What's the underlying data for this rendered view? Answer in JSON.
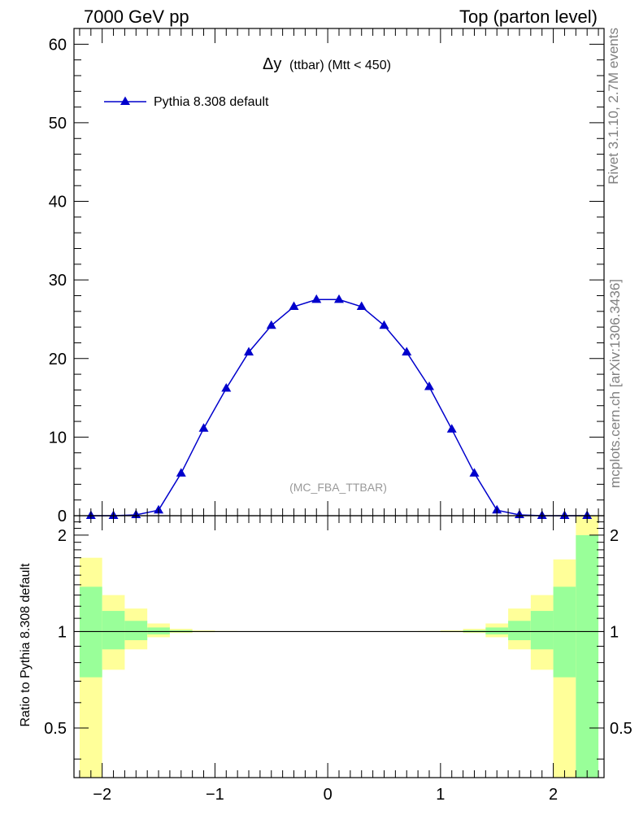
{
  "header": {
    "left": "7000 GeV pp",
    "right": "Top (parton level)"
  },
  "side_labels": {
    "rivet": "Rivet 3.1.10,  2.7M events",
    "mcplots": "mcplots.cern.ch [arXiv:1306.3436]"
  },
  "main_plot": {
    "title_symbol": "Δy",
    "title_rest": "(ttbar) (Mtt < 450)",
    "watermark": "(MC_FBA_TTBAR)",
    "legend_label": "Pythia 8.308 default"
  },
  "ratio_plot": {
    "ylabel": "Ratio to Pythia 8.308 default"
  },
  "colors": {
    "series": "#0000cc",
    "band_inner": "#99ff99",
    "band_outer": "#ffff99"
  },
  "chart_data": [
    {
      "type": "line",
      "x": [
        -2.1,
        -1.9,
        -1.7,
        -1.5,
        -1.3,
        -1.1,
        -0.9,
        -0.7,
        -0.5,
        -0.3,
        -0.1,
        0.1,
        0.3,
        0.5,
        0.7,
        0.9,
        1.1,
        1.3,
        1.5,
        1.7,
        1.9,
        2.1,
        2.3
      ],
      "series": [
        {
          "name": "Pythia 8.308 default",
          "values": [
            0.0,
            0.0,
            0.1,
            0.7,
            5.4,
            11.1,
            16.2,
            20.8,
            24.2,
            26.6,
            27.5,
            27.5,
            26.6,
            24.2,
            20.8,
            16.4,
            11.0,
            5.4,
            0.7,
            0.1,
            0.0,
            0.0,
            0.0
          ]
        }
      ],
      "xlim": [
        -2.25,
        2.45
      ],
      "ylim": [
        0,
        62
      ],
      "yticks": [
        0,
        10,
        20,
        30,
        40,
        50,
        60
      ],
      "xlabel": "",
      "ylabel": ""
    },
    {
      "type": "area",
      "bins": [
        -2.2,
        -2.0,
        -1.8,
        -1.6,
        -1.4,
        -1.2,
        -1.0,
        -0.8,
        -0.6,
        -0.4,
        -0.2,
        0.0,
        0.2,
        0.4,
        0.6,
        0.8,
        1.0,
        1.2,
        1.4,
        1.6,
        1.8,
        2.0,
        2.2,
        2.4
      ],
      "band_inner_low": [
        0.72,
        0.88,
        0.94,
        0.98,
        0.995,
        0.998,
        0.999,
        0.999,
        0.999,
        0.999,
        0.999,
        0.999,
        0.999,
        0.999,
        0.999,
        0.999,
        0.999,
        0.995,
        0.98,
        0.94,
        0.88,
        0.72,
        0.3
      ],
      "band_inner_high": [
        1.38,
        1.16,
        1.08,
        1.03,
        1.01,
        1.003,
        1.002,
        1.001,
        1.001,
        1.001,
        1.001,
        1.001,
        1.001,
        1.001,
        1.001,
        1.002,
        1.003,
        1.01,
        1.03,
        1.08,
        1.16,
        1.38,
        2.0
      ],
      "band_outer_low": [
        0.3,
        0.76,
        0.88,
        0.96,
        0.99,
        0.996,
        0.998,
        0.998,
        0.998,
        0.998,
        0.998,
        0.998,
        0.998,
        0.998,
        0.998,
        0.998,
        0.996,
        0.99,
        0.96,
        0.88,
        0.76,
        0.3,
        0.3
      ],
      "band_outer_high": [
        1.7,
        1.3,
        1.18,
        1.06,
        1.02,
        1.008,
        1.004,
        1.003,
        1.002,
        1.002,
        1.002,
        1.002,
        1.002,
        1.002,
        1.003,
        1.004,
        1.008,
        1.02,
        1.06,
        1.18,
        1.3,
        1.68,
        2.3
      ],
      "ylim": [
        0.35,
        2.3
      ],
      "yticks": [
        0.5,
        1,
        2
      ],
      "xticks": [
        -2,
        -1,
        0,
        1,
        2
      ],
      "ylabel": "Ratio to Pythia 8.308 default"
    }
  ]
}
